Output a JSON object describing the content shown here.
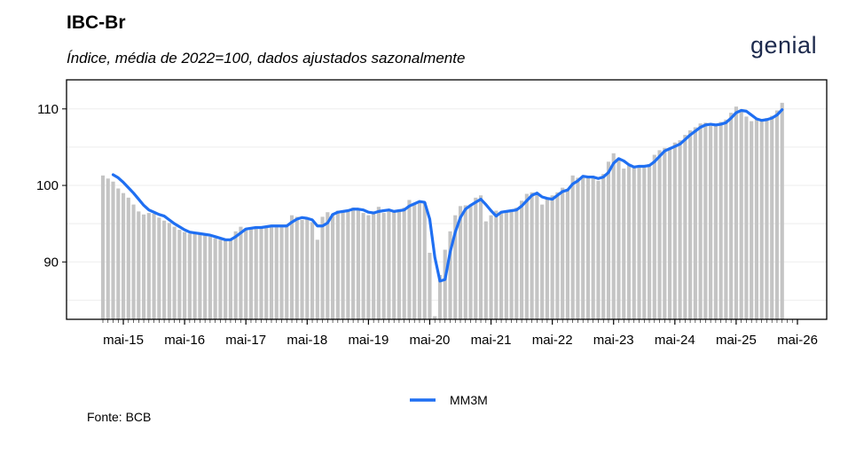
{
  "header": {
    "title": "IBC-Br",
    "subtitle": "Índice, média de 2022=100, dados ajustados sazonalmente",
    "logo_text": "genial"
  },
  "footer": {
    "source": "Fonte: BCB"
  },
  "colors": {
    "bars": "#c4c4c4",
    "line": "#1f6ff2",
    "axis": "#000000",
    "grid": "#eeeeee"
  },
  "chart_data": {
    "type": "bar",
    "grid": true,
    "legend_placement": "bottom-center",
    "xlabel": "",
    "ylabel": "",
    "ylim": [
      82.5,
      113.8
    ],
    "y_ticks": [
      90,
      100,
      110
    ],
    "x_tick_labels": [
      "mai-15",
      "mai-16",
      "mai-17",
      "mai-18",
      "mai-19",
      "mai-20",
      "mai-21",
      "mai-22",
      "mai-23",
      "mai-24",
      "mai-25",
      "mai-26"
    ],
    "x_start": "2015-01",
    "x_end_tick": "2026-05",
    "series": [
      {
        "kind": "bars",
        "values": [
          101.3,
          100.9,
          100.5,
          99.6,
          99.0,
          98.4,
          97.5,
          96.6,
          96.2,
          96.4,
          96.3,
          95.8,
          95.4,
          95.1,
          94.6,
          94.2,
          93.9,
          93.7,
          93.7,
          93.6,
          93.5,
          93.3,
          93.1,
          92.9,
          92.8,
          92.9,
          94.0,
          94.6,
          94.4,
          94.3,
          94.6,
          94.6,
          94.7,
          94.8,
          94.7,
          94.6,
          94.9,
          96.1,
          95.9,
          95.5,
          95.7,
          95.2,
          92.9,
          95.9,
          96.5,
          96.3,
          96.7,
          96.7,
          96.8,
          97.1,
          96.9,
          96.4,
          96.1,
          96.6,
          97.2,
          96.4,
          96.8,
          96.6,
          96.7,
          97.1,
          98.1,
          97.7,
          97.8,
          97.8,
          91.2,
          82.9,
          88.3,
          91.6,
          94.0,
          96.1,
          97.3,
          97.4,
          97.5,
          98.4,
          98.7,
          95.3,
          96.1,
          96.7,
          96.6,
          96.6,
          96.8,
          97.1,
          98.0,
          98.9,
          99.1,
          99.0,
          97.5,
          98.4,
          98.7,
          99.1,
          99.7,
          99.5,
          101.3,
          101.0,
          101.2,
          101.0,
          101.1,
          100.6,
          101.5,
          103.1,
          104.2,
          103.3,
          102.2,
          102.6,
          102.4,
          102.5,
          102.6,
          102.8,
          104.0,
          104.6,
          104.9,
          104.8,
          105.6,
          105.9,
          106.6,
          107.2,
          107.6,
          108.1,
          108.2,
          107.8,
          107.9,
          108.3,
          108.6,
          109.5,
          110.3,
          109.7,
          109.0,
          108.4,
          108.7,
          108.5,
          108.8,
          109.1,
          109.8,
          110.8
        ]
      },
      {
        "kind": "line",
        "name": "MM3M",
        "values": [
          null,
          null,
          101.4,
          101.0,
          100.4,
          99.7,
          99.0,
          98.2,
          97.4,
          96.8,
          96.5,
          96.2,
          96.0,
          95.5,
          95.0,
          94.6,
          94.2,
          93.9,
          93.8,
          93.7,
          93.6,
          93.5,
          93.3,
          93.1,
          92.9,
          92.9,
          93.3,
          93.8,
          94.3,
          94.4,
          94.5,
          94.5,
          94.6,
          94.7,
          94.7,
          94.7,
          94.7,
          95.2,
          95.6,
          95.8,
          95.7,
          95.5,
          94.7,
          94.7,
          95.1,
          96.2,
          96.5,
          96.6,
          96.7,
          96.9,
          96.9,
          96.8,
          96.5,
          96.4,
          96.6,
          96.7,
          96.8,
          96.6,
          96.7,
          96.8,
          97.3,
          97.6,
          97.9,
          97.8,
          95.6,
          90.6,
          87.5,
          87.7,
          91.3,
          93.9,
          95.8,
          96.9,
          97.4,
          97.8,
          98.2,
          97.5,
          96.7,
          96.0,
          96.5,
          96.6,
          96.7,
          96.8,
          97.3,
          98.0,
          98.7,
          99.0,
          98.5,
          98.3,
          98.2,
          98.7,
          99.2,
          99.4,
          100.2,
          100.6,
          101.2,
          101.1,
          101.1,
          100.9,
          101.1,
          101.7,
          102.9,
          103.5,
          103.2,
          102.7,
          102.4,
          102.5,
          102.5,
          102.6,
          103.1,
          103.8,
          104.5,
          104.8,
          105.1,
          105.4,
          106.0,
          106.6,
          107.1,
          107.6,
          107.9,
          108.0,
          107.9,
          108.0,
          108.2,
          108.8,
          109.5,
          109.8,
          109.7,
          109.2,
          108.7,
          108.5,
          108.6,
          108.8,
          109.2,
          109.9
        ]
      }
    ]
  }
}
